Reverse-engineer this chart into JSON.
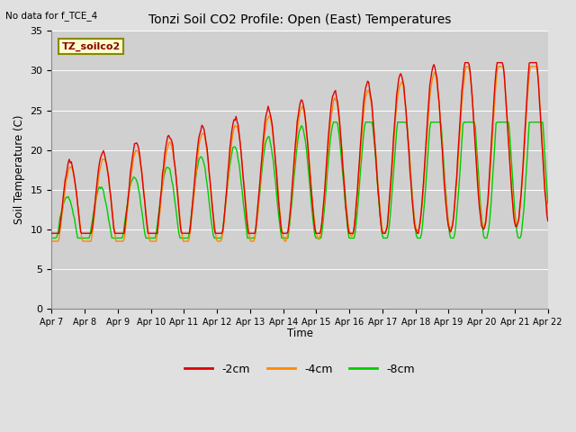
{
  "title": "Tonzi Soil CO2 Profile: Open (East) Temperatures",
  "subtitle": "No data for f_TCE_4",
  "xlabel": "Time",
  "ylabel": "Soil Temperature (C)",
  "ylim": [
    0,
    35
  ],
  "xlim": [
    0,
    15
  ],
  "fig_bg": "#e0e0e0",
  "plot_bg": "#d0d0d0",
  "grid_color": "#ffffff",
  "tick_labels": [
    "Apr 7",
    "Apr 8",
    "Apr 9",
    "Apr 10",
    "Apr 11",
    "Apr 12",
    "Apr 13",
    "Apr 14",
    "Apr 15",
    "Apr 16",
    "Apr 17",
    "Apr 18",
    "Apr 19",
    "Apr 20",
    "Apr 21",
    "Apr 22"
  ],
  "legend_label": "TZ_soilco2",
  "line_colors": {
    "2cm": "#dd0000",
    "4cm": "#ff8800",
    "8cm": "#00cc00"
  },
  "series_labels": [
    "-2cm",
    "-4cm",
    "-8cm"
  ],
  "yticks": [
    0,
    5,
    10,
    15,
    20,
    25,
    30,
    35
  ]
}
